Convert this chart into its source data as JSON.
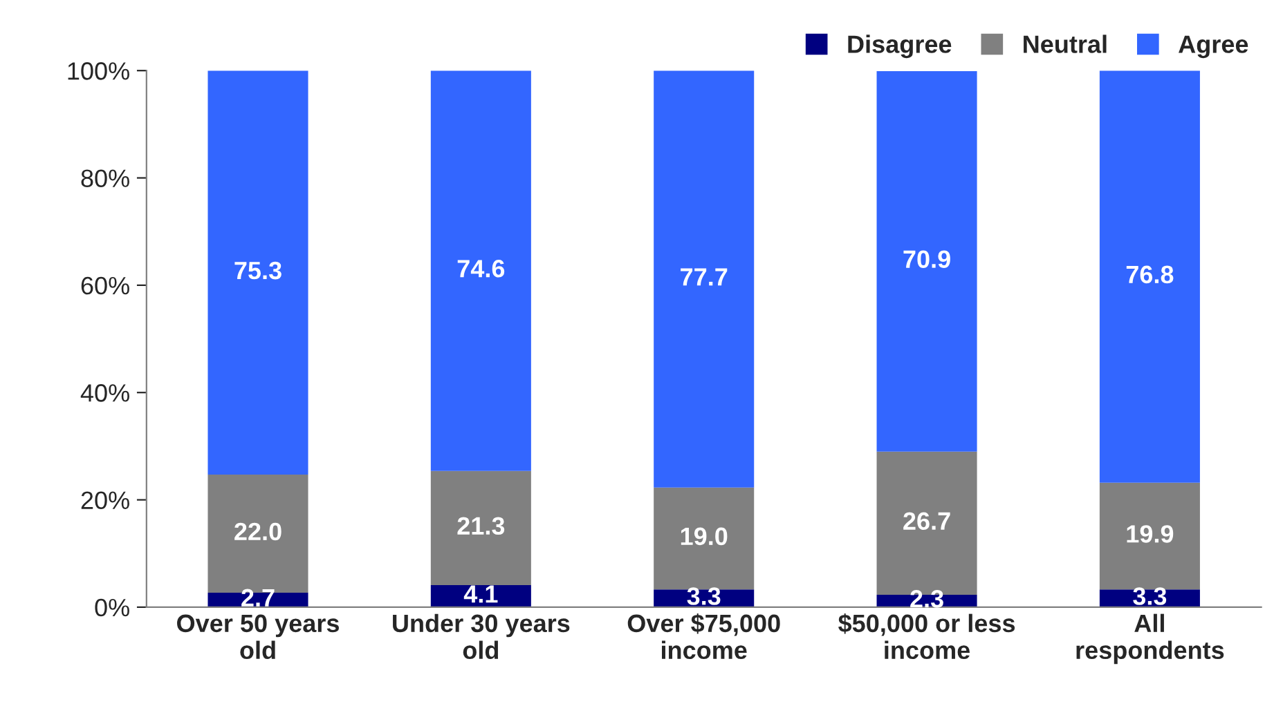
{
  "chart_data": {
    "type": "bar",
    "stacked": true,
    "categories": [
      "Over 50 years\nold",
      "Under 30 years\nold",
      "Over $75,000\nincome",
      "$50,000 or less\nincome",
      "All\nrespondents"
    ],
    "series": [
      {
        "name": "Disagree",
        "color": "#000080",
        "values": [
          2.7,
          4.1,
          3.3,
          2.3,
          3.3
        ],
        "value_labels": [
          "2.7",
          "4.1",
          "3.3",
          "2.3",
          "3.3"
        ]
      },
      {
        "name": "Neutral",
        "color": "#808080",
        "values": [
          22.0,
          21.3,
          19.0,
          26.7,
          19.9
        ],
        "value_labels": [
          "22.0",
          "21.3",
          "19.0",
          "26.7",
          "19.9"
        ]
      },
      {
        "name": "Agree",
        "color": "#3366ff",
        "values": [
          75.3,
          74.6,
          77.7,
          70.9,
          76.8
        ],
        "value_labels": [
          "75.3",
          "74.6",
          "77.7",
          "70.9",
          "76.8"
        ]
      }
    ],
    "ylim": [
      0,
      100
    ],
    "yticks": [
      {
        "value": 0,
        "label": "0%"
      },
      {
        "value": 20,
        "label": "20%"
      },
      {
        "value": 40,
        "label": "40%"
      },
      {
        "value": 60,
        "label": "60%"
      },
      {
        "value": 80,
        "label": "80%"
      },
      {
        "value": 100,
        "label": "100%"
      }
    ],
    "grid": false,
    "legend": "top right"
  }
}
